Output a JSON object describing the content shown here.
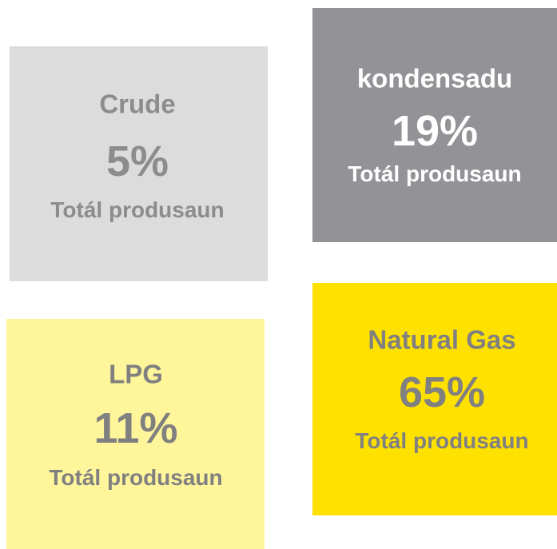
{
  "tiles": [
    {
      "label": "Crude",
      "percent": "5%",
      "subtitle": "Totál produsaun"
    },
    {
      "label": "kondensadu",
      "percent": "19%",
      "subtitle": "Totál produsaun"
    },
    {
      "label": "LPG",
      "percent": "11%",
      "subtitle": "Totál produsaun"
    },
    {
      "label": "Natural Gas",
      "percent": "65%",
      "subtitle": "Totál produsaun"
    }
  ]
}
